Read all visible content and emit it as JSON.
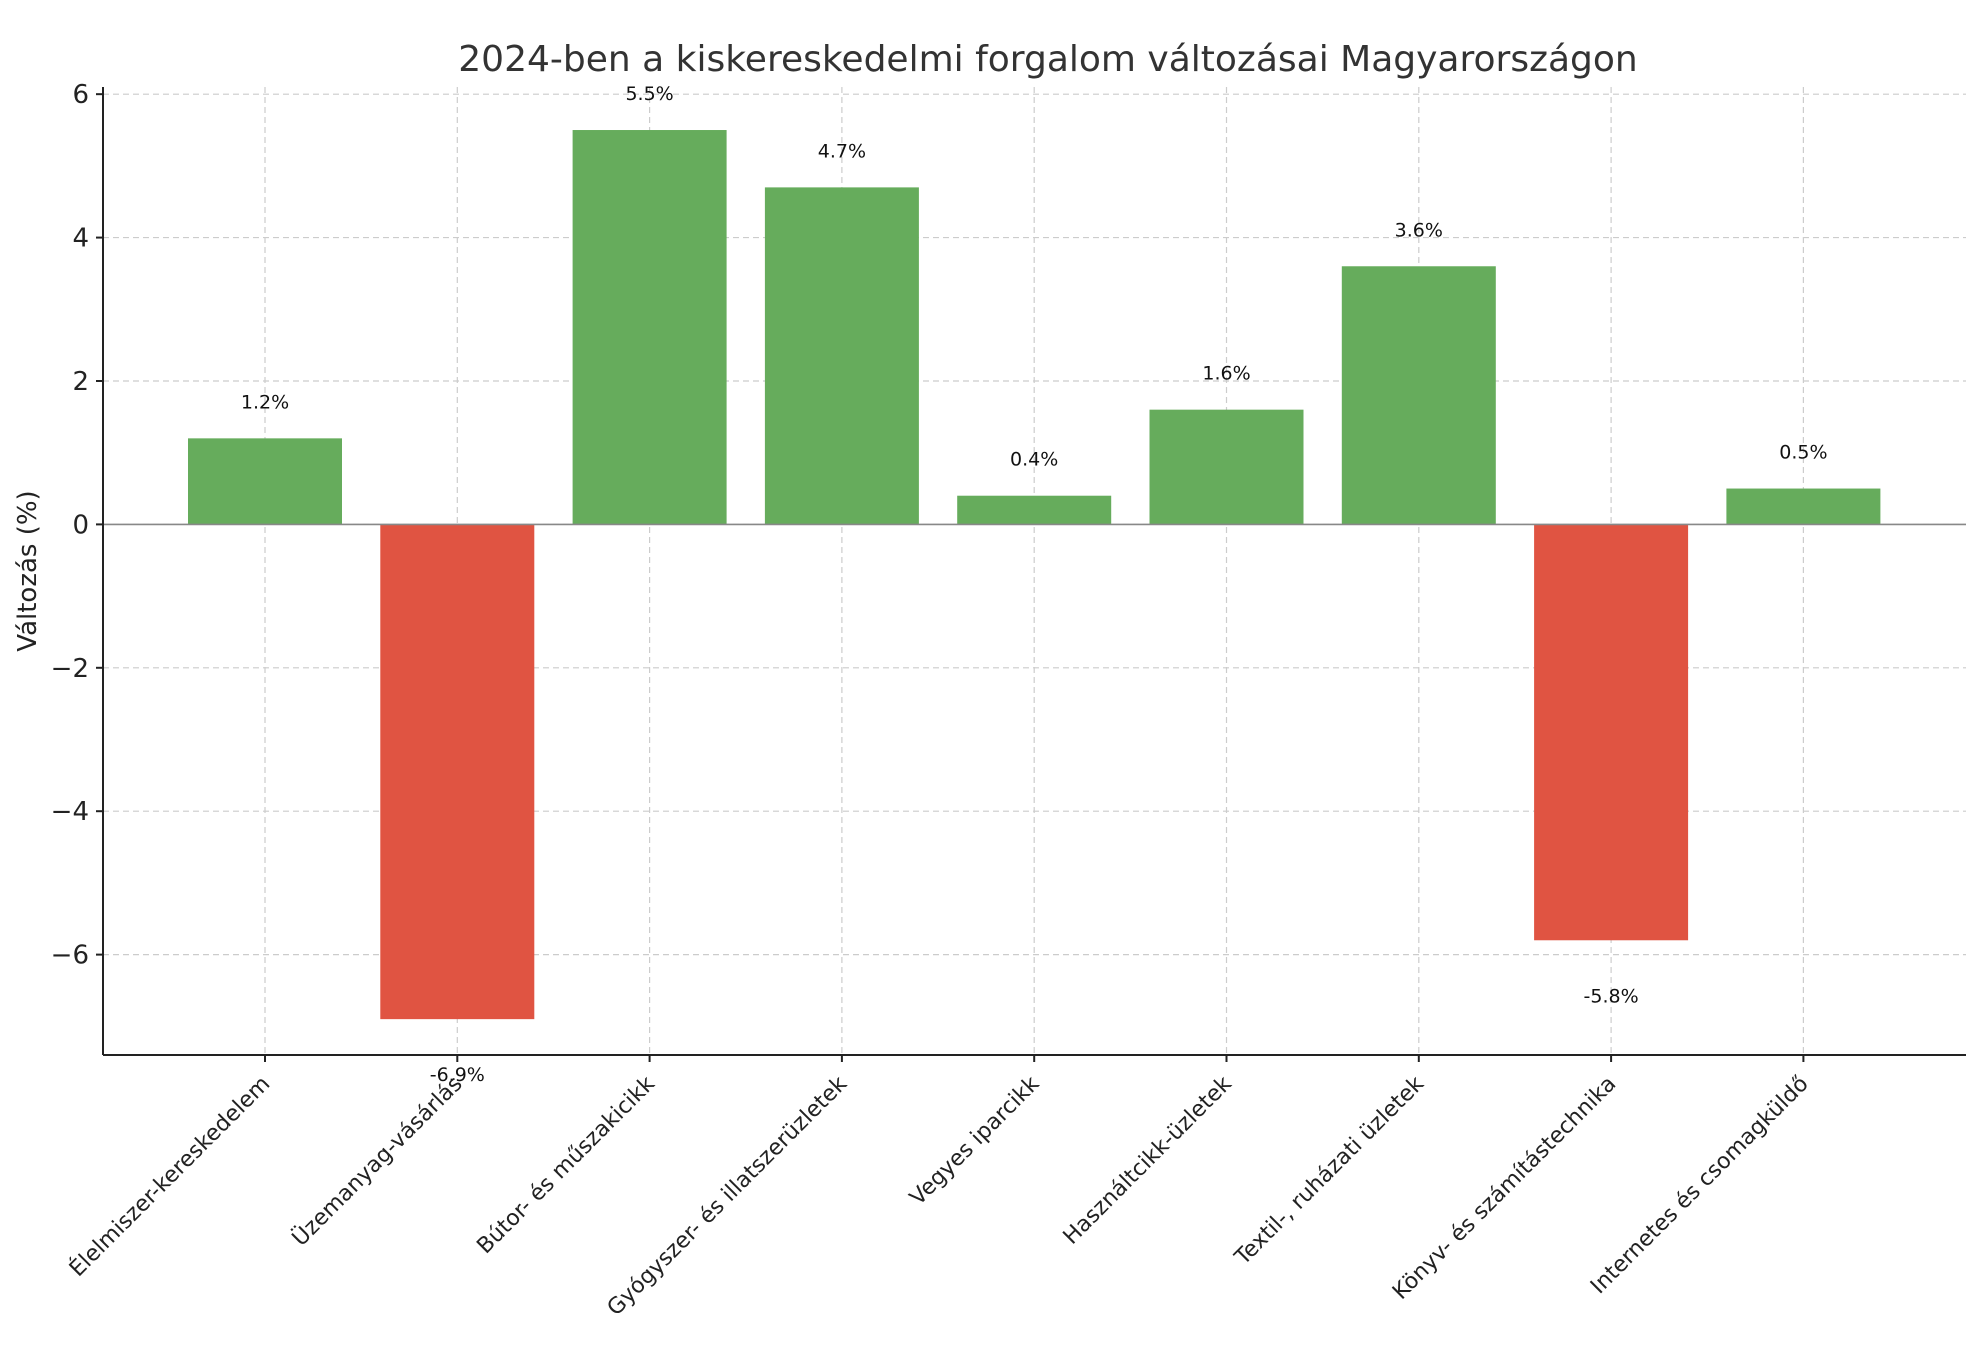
{
  "chart_data": {
    "type": "bar",
    "title": "2024-ben a kiskereskedelmi forgalom változásai Magyarországon",
    "xlabel": "",
    "ylabel": "Változás (%)",
    "ylim": [
      -7.4,
      6.1
    ],
    "yticks": [
      6,
      4,
      2,
      0,
      -2,
      -4,
      -6
    ],
    "ytick_labels": [
      "6",
      "4",
      "2",
      "0",
      "−2",
      "−4",
      "−6"
    ],
    "grid": true,
    "categories": [
      "Élelmiszer-kereskedelem",
      "Üzemanyag-vásárlás",
      "Bútor- és műszakicikk",
      "Gyógyszer- és illatszerüzletek",
      "Vegyes iparcikk",
      "Használtcikk-üzletek",
      "Textil-, ruházati üzletek",
      "Könyv- és számítástechnika",
      "Internetes és csomagküldő"
    ],
    "values": [
      1.2,
      -6.9,
      5.5,
      4.7,
      0.4,
      1.6,
      3.6,
      -5.8,
      0.5
    ],
    "data_labels": [
      "1.2%",
      "-6.9%",
      "5.5%",
      "4.7%",
      "0.4%",
      "1.6%",
      "3.6%",
      "-5.8%",
      "0.5%"
    ],
    "colors": {
      "positive": "#66ac5c",
      "negative": "#e05442"
    }
  }
}
